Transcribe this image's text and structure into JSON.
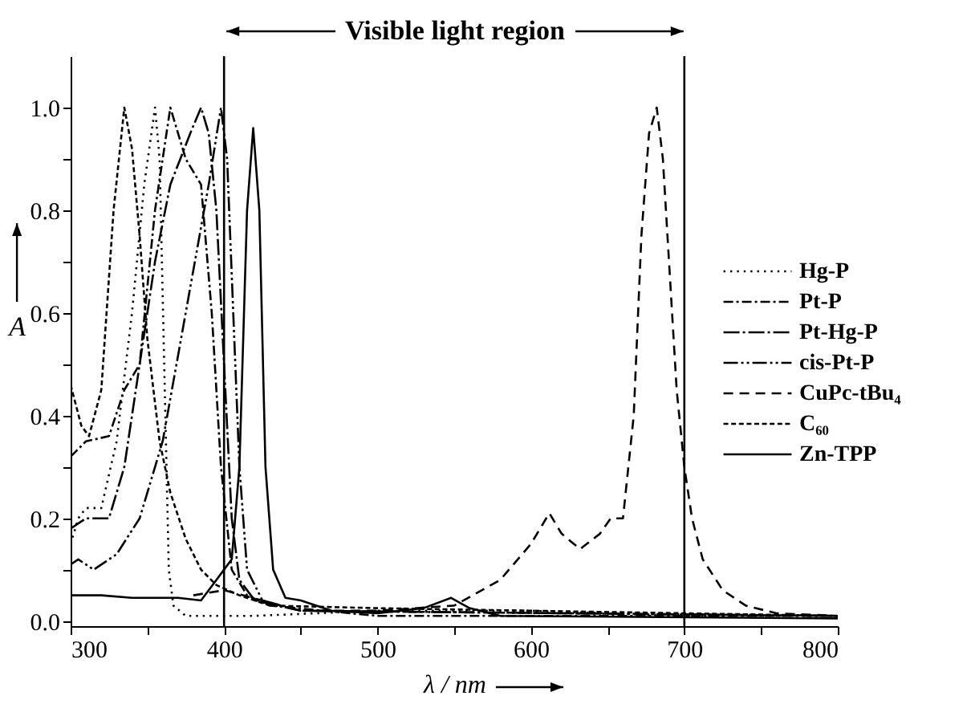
{
  "chart_data": {
    "type": "line",
    "xlabel": "λ / nm",
    "ylabel": "A",
    "annotations": [
      "Visible light region"
    ],
    "xlim": [
      300,
      800
    ],
    "ylim": [
      -0.01,
      1.1
    ],
    "xticks": [
      300,
      {
        "value": 350,
        "label": null
      },
      400,
      {
        "value": 450,
        "label": null
      },
      500,
      {
        "value": 550,
        "label": null
      },
      600,
      {
        "value": 650,
        "label": null
      },
      700,
      {
        "value": 750,
        "label": null
      },
      800
    ],
    "yticks": [
      {
        "value": 0,
        "label": "0.0"
      },
      {
        "value": 0.1,
        "label": null
      },
      0.2,
      {
        "value": 0.3,
        "label": null
      },
      0.4,
      {
        "value": 0.5,
        "label": null
      },
      0.6,
      {
        "value": 0.7,
        "label": null
      },
      0.8,
      {
        "value": 0.9,
        "label": null
      },
      {
        "value": 1,
        "label": "1.0"
      }
    ],
    "ref_lines": [
      {
        "axis": "x",
        "value": 400,
        "color": "#000000"
      },
      {
        "axis": "x",
        "value": 700,
        "color": "#000000"
      }
    ],
    "legend": "right",
    "grid": false,
    "series": [
      {
        "name": "Hg-P",
        "color": "#000000",
        "line_style": "dotted",
        "x": [
          300,
          305,
          310,
          320,
          330,
          340,
          348,
          355,
          358,
          361,
          364,
          367,
          375,
          400,
          420,
          500,
          600,
          700,
          800
        ],
        "values": [
          0.15,
          0.2,
          0.22,
          0.22,
          0.35,
          0.6,
          0.85,
          1.0,
          0.9,
          0.5,
          0.1,
          0.03,
          0.01,
          0.01,
          0.01,
          0.02,
          0.02,
          0.01,
          0.01
        ]
      },
      {
        "name": "Pt-P",
        "color": "#000000",
        "line_style": "dashed",
        "x": [
          300,
          310,
          325,
          335,
          345,
          355,
          365,
          375,
          385,
          392,
          398,
          405,
          415,
          430,
          500,
          800
        ],
        "values": [
          0.32,
          0.35,
          0.36,
          0.45,
          0.5,
          0.8,
          1.0,
          0.9,
          0.85,
          0.6,
          0.3,
          0.1,
          0.05,
          0.03,
          0.01,
          0.01
        ]
      },
      {
        "name": "Pt-Hg-P",
        "color": "#000000",
        "line_style": "dashed",
        "x": [
          300,
          310,
          325,
          335,
          345,
          355,
          365,
          378,
          385,
          390,
          395,
          400,
          405,
          410,
          420,
          450,
          800
        ],
        "values": [
          0.18,
          0.2,
          0.2,
          0.3,
          0.5,
          0.7,
          0.85,
          0.95,
          1.0,
          0.95,
          0.8,
          0.5,
          0.2,
          0.08,
          0.04,
          0.02,
          0.01
        ]
      },
      {
        "name": "cis-Pt-P",
        "color": "#000000",
        "line_style": "dashed",
        "x": [
          300,
          305,
          315,
          330,
          345,
          360,
          375,
          390,
          398,
          402,
          406,
          410,
          415,
          425,
          450,
          800
        ],
        "values": [
          0.11,
          0.12,
          0.1,
          0.13,
          0.2,
          0.35,
          0.6,
          0.85,
          1.0,
          0.9,
          0.6,
          0.3,
          0.1,
          0.04,
          0.02,
          0.01
        ]
      },
      {
        "name": "CuPc-tBu₄",
        "color": "#000000",
        "line_style": "dashed",
        "x": [
          380,
          400,
          450,
          500,
          550,
          580,
          600,
          612,
          620,
          632,
          645,
          652,
          660,
          667,
          672,
          677,
          682,
          686,
          690,
          695,
          700,
          705,
          712,
          725,
          740,
          760,
          800
        ],
        "values": [
          0.05,
          0.06,
          0.02,
          0.02,
          0.03,
          0.08,
          0.15,
          0.21,
          0.17,
          0.14,
          0.17,
          0.2,
          0.2,
          0.4,
          0.75,
          0.95,
          1.0,
          0.9,
          0.7,
          0.45,
          0.3,
          0.2,
          0.12,
          0.06,
          0.03,
          0.015,
          0.01
        ]
      },
      {
        "name": "C₆₀",
        "color": "#000000",
        "line_style": "dotted",
        "x": [
          300,
          307,
          312,
          320,
          328,
          335,
          340,
          345,
          350,
          358,
          365,
          375,
          385,
          395,
          410,
          430,
          500,
          600,
          700,
          800
        ],
        "values": [
          0.46,
          0.38,
          0.36,
          0.45,
          0.8,
          1.0,
          0.92,
          0.75,
          0.55,
          0.35,
          0.25,
          0.16,
          0.1,
          0.07,
          0.05,
          0.03,
          0.025,
          0.02,
          0.015,
          0.01
        ]
      },
      {
        "name": "Zn-TPP",
        "color": "#000000",
        "line_style": "solid",
        "x": [
          300,
          320,
          340,
          370,
          385,
          395,
          400,
          405,
          410,
          415,
          419,
          423,
          427,
          432,
          440,
          450,
          470,
          500,
          530,
          548,
          560,
          580,
          800
        ],
        "values": [
          0.05,
          0.05,
          0.045,
          0.045,
          0.04,
          0.08,
          0.1,
          0.12,
          0.3,
          0.8,
          0.96,
          0.8,
          0.3,
          0.1,
          0.045,
          0.04,
          0.02,
          0.015,
          0.025,
          0.045,
          0.025,
          0.01,
          0.005
        ]
      }
    ]
  }
}
